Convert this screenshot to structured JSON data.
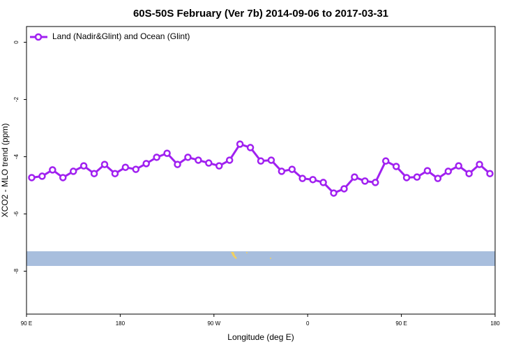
{
  "chart_data": {
    "type": "line",
    "title": "60S-50S February (Ver 7b)   2014-09-06 to 2017-03-31",
    "x_label": "Longitude (deg E)",
    "y_label": "XCO2 - MLO trend (ppm)",
    "x": [
      95,
      105,
      115,
      125,
      135,
      145,
      155,
      165,
      175,
      185,
      195,
      205,
      215,
      225,
      235,
      245,
      255,
      265,
      275,
      285,
      295,
      305,
      315,
      325,
      335,
      345,
      355,
      365,
      375,
      385,
      395,
      405,
      415,
      425,
      435,
      445,
      455,
      465,
      475,
      485,
      495,
      505,
      515,
      525,
      535
    ],
    "series": [
      {
        "name": "Land (Nadir&Glint) and Ocean (Glint)",
        "color": "#a020f0",
        "values": [
          -4.73,
          -4.68,
          -4.46,
          -4.73,
          -4.51,
          -4.32,
          -4.59,
          -4.27,
          -4.59,
          -4.37,
          -4.44,
          -4.24,
          -4.02,
          -3.88,
          -4.27,
          -4.02,
          -4.12,
          -4.22,
          -4.32,
          -4.12,
          -3.56,
          -3.68,
          -4.15,
          -4.12,
          -4.51,
          -4.44,
          -4.76,
          -4.8,
          -4.9,
          -5.27,
          -5.12,
          -4.71,
          -4.85,
          -4.9,
          -4.15,
          -4.34,
          -4.73,
          -4.71,
          -4.49,
          -4.76,
          -4.51,
          -4.32,
          -4.59,
          -4.27,
          -4.59
        ]
      }
    ],
    "xlim": [
      90,
      540
    ],
    "xticks": [
      {
        "value": 90,
        "label": "90 E"
      },
      180,
      {
        "value": 270,
        "label": "90 W"
      },
      {
        "value": 360,
        "label": "0"
      },
      {
        "value": 450,
        "label": "90 E"
      },
      {
        "value": 540,
        "label": "180"
      }
    ],
    "ylim": [
      -9.5,
      0.55
    ],
    "yticks": [
      0,
      -2,
      -4,
      -6,
      -8
    ],
    "legend": "top-left"
  }
}
